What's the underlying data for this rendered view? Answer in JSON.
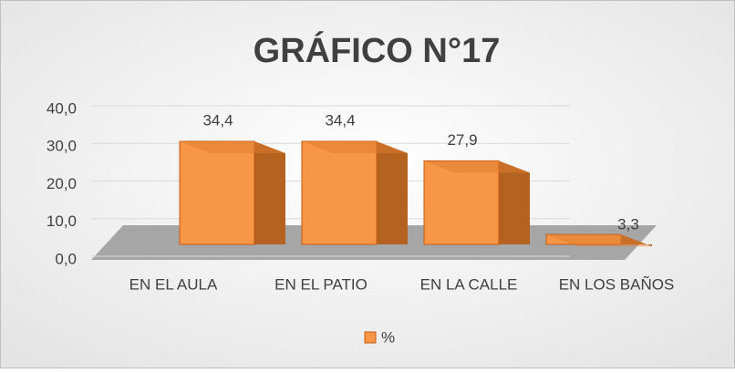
{
  "chart_data": {
    "type": "bar3d",
    "title": "GRÁFICO N°17",
    "categories": [
      "EN EL AULA",
      "EN EL PATIO",
      "EN LA CALLE",
      "EN LOS BAÑOS"
    ],
    "series": [
      {
        "name": "%",
        "color": "#f79646",
        "values": [
          34.4,
          34.4,
          27.9,
          3.3
        ],
        "value_labels": [
          "34,4",
          "34,4",
          "27,9",
          "3,3"
        ]
      }
    ],
    "ylim": [
      0,
      40
    ],
    "yticks": [
      {
        "value": 0,
        "label": "0,0"
      },
      {
        "value": 10,
        "label": "10,0"
      },
      {
        "value": 20,
        "label": "20,0"
      },
      {
        "value": 30,
        "label": "30,0"
      },
      {
        "value": 40,
        "label": "40,0"
      }
    ],
    "grid": true,
    "legend": "bottom"
  }
}
